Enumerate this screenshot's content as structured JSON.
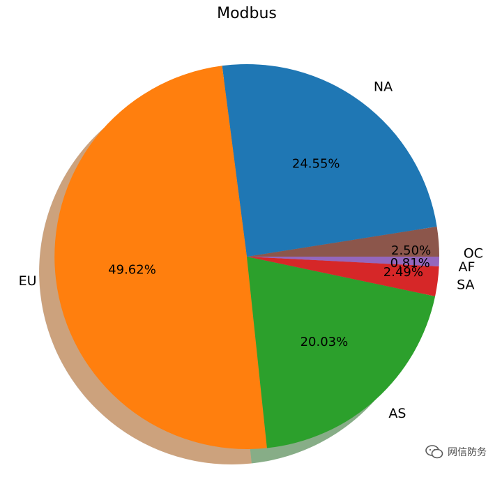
{
  "chart_data": {
    "type": "pie",
    "title": "Modbus",
    "shadow": true,
    "start_angle_deg": 0,
    "direction": "counterclockwise",
    "slices": [
      {
        "label": "OC",
        "value": 2.5,
        "pct_label": "2.50%",
        "color": "#8c564b"
      },
      {
        "label": "NA",
        "value": 24.55,
        "pct_label": "24.55%",
        "color": "#1f77b4"
      },
      {
        "label": "EU",
        "value": 49.62,
        "pct_label": "49.62%",
        "color": "#ff7f0e"
      },
      {
        "label": "AS",
        "value": 20.03,
        "pct_label": "20.03%",
        "color": "#2ca02c"
      },
      {
        "label": "SA",
        "value": 2.49,
        "pct_label": "2.49%",
        "color": "#d62728"
      },
      {
        "label": "AF",
        "value": 0.81,
        "pct_label": "0.81%",
        "color": "#9467bd"
      }
    ]
  },
  "watermark": {
    "text": "网信防务",
    "icon": "wechat-icon"
  }
}
